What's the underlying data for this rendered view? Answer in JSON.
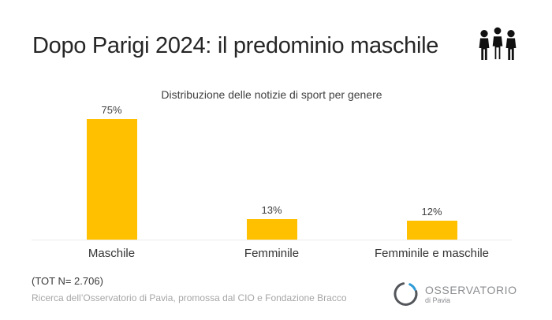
{
  "slide": {
    "title": "Dopo Parigi 2024: il predominio maschile",
    "title_color": "#262626",
    "header_icon": "three-people-icon",
    "background_color": "#ffffff"
  },
  "chart_data": {
    "type": "bar",
    "title": "Distribuzione delle notizie di sport per genere",
    "categories": [
      "Maschile",
      "Femminile",
      "Femminile e maschile"
    ],
    "values": [
      75,
      13,
      12
    ],
    "value_labels": [
      "75%",
      "13%",
      "12%"
    ],
    "unit": "%",
    "ylim": [
      0,
      80
    ],
    "grid": false,
    "legend": false,
    "bar_color": "#FFC000",
    "axis_line_color": "#ececec",
    "label_color": "#404040"
  },
  "footer": {
    "note": "(TOT N= 2.706)",
    "source": "Ricerca dell’Osservatorio di Pavia, promossa dal CIO e Fondazione Bracco"
  },
  "logo": {
    "name": "OSSERVATORIO",
    "subtitle": "di Pavia",
    "ring_color": "#53565a",
    "accent_color": "#2f9bd6",
    "text_color": "#8b8d90"
  }
}
